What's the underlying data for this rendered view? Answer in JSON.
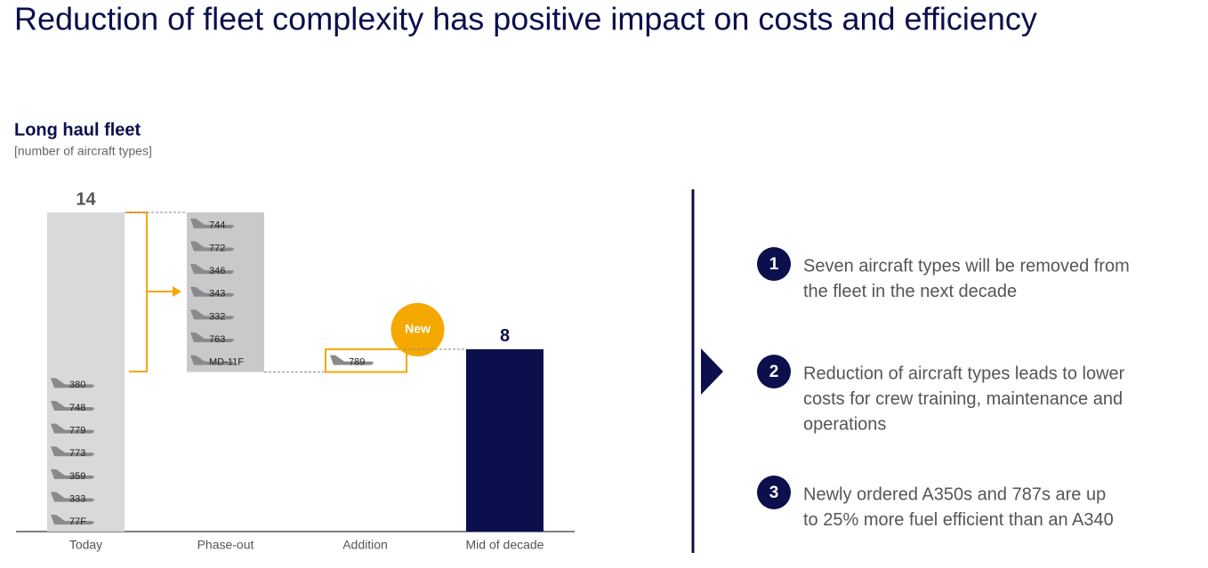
{
  "title": "Reduction of fleet complexity has positive impact on costs and efficiency",
  "chart_data": {
    "type": "waterfall",
    "title": "Long haul fleet",
    "subtitle": "[number of aircraft types]",
    "categories": [
      "Today",
      "Phase-out",
      "Addition",
      "Mid of decade"
    ],
    "values": [
      14,
      -7,
      1,
      8
    ],
    "measure": [
      "absolute",
      "relative",
      "relative",
      "total"
    ],
    "colors": [
      "#d9d9dc",
      "#c9c9cb",
      "#f5a800",
      "#0b0f4c"
    ],
    "aircraft": [
      [
        "380",
        "748",
        "779",
        "773",
        "359",
        "333",
        "77F"
      ],
      [
        "744",
        "772",
        "346",
        "343",
        "332",
        "763",
        "MD-11F"
      ],
      [
        "789"
      ],
      []
    ],
    "badge": "New"
  },
  "panel": {
    "points": [
      {
        "number": "1",
        "lines": [
          "Seven aircraft types will be removed from",
          "the fleet in the next decade"
        ]
      },
      {
        "number": "2",
        "lines": [
          "Reduction of aircraft types leads to lower",
          "costs for crew training, maintenance and",
          "operations"
        ]
      },
      {
        "number": "3",
        "lines": [
          "Newly ordered A350s and 787s are up",
          "to 25% more fuel efficient than an A340"
        ]
      }
    ]
  }
}
